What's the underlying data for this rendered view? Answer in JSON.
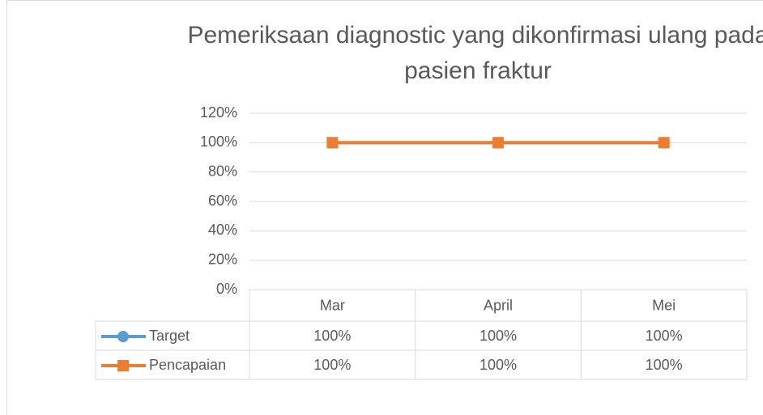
{
  "chart_data": {
    "type": "line",
    "title": "Pemeriksaan diagnostic yang dikonfirmasi ulang pada pasien fraktur",
    "categories": [
      "Mar",
      "April",
      "Mei"
    ],
    "series": [
      {
        "name": "Target",
        "color": "#5b9bd5",
        "marker": "circle",
        "values": [
          100,
          100,
          100
        ],
        "value_labels": [
          "100%",
          "100%",
          "100%"
        ]
      },
      {
        "name": "Pencapaian",
        "color": "#ed7d31",
        "marker": "square",
        "values": [
          100,
          100,
          100
        ],
        "value_labels": [
          "100%",
          "100%",
          "100%"
        ]
      }
    ],
    "ylim": [
      0,
      120
    ],
    "yticks": [
      {
        "value": 0,
        "label": "0%"
      },
      {
        "value": 20,
        "label": "20%"
      },
      {
        "value": 40,
        "label": "40%"
      },
      {
        "value": 60,
        "label": "60%"
      },
      {
        "value": 80,
        "label": "80%"
      },
      {
        "value": 100,
        "label": "100%"
      },
      {
        "value": 120,
        "label": "120%"
      }
    ],
    "grid": true,
    "data_table": true
  }
}
